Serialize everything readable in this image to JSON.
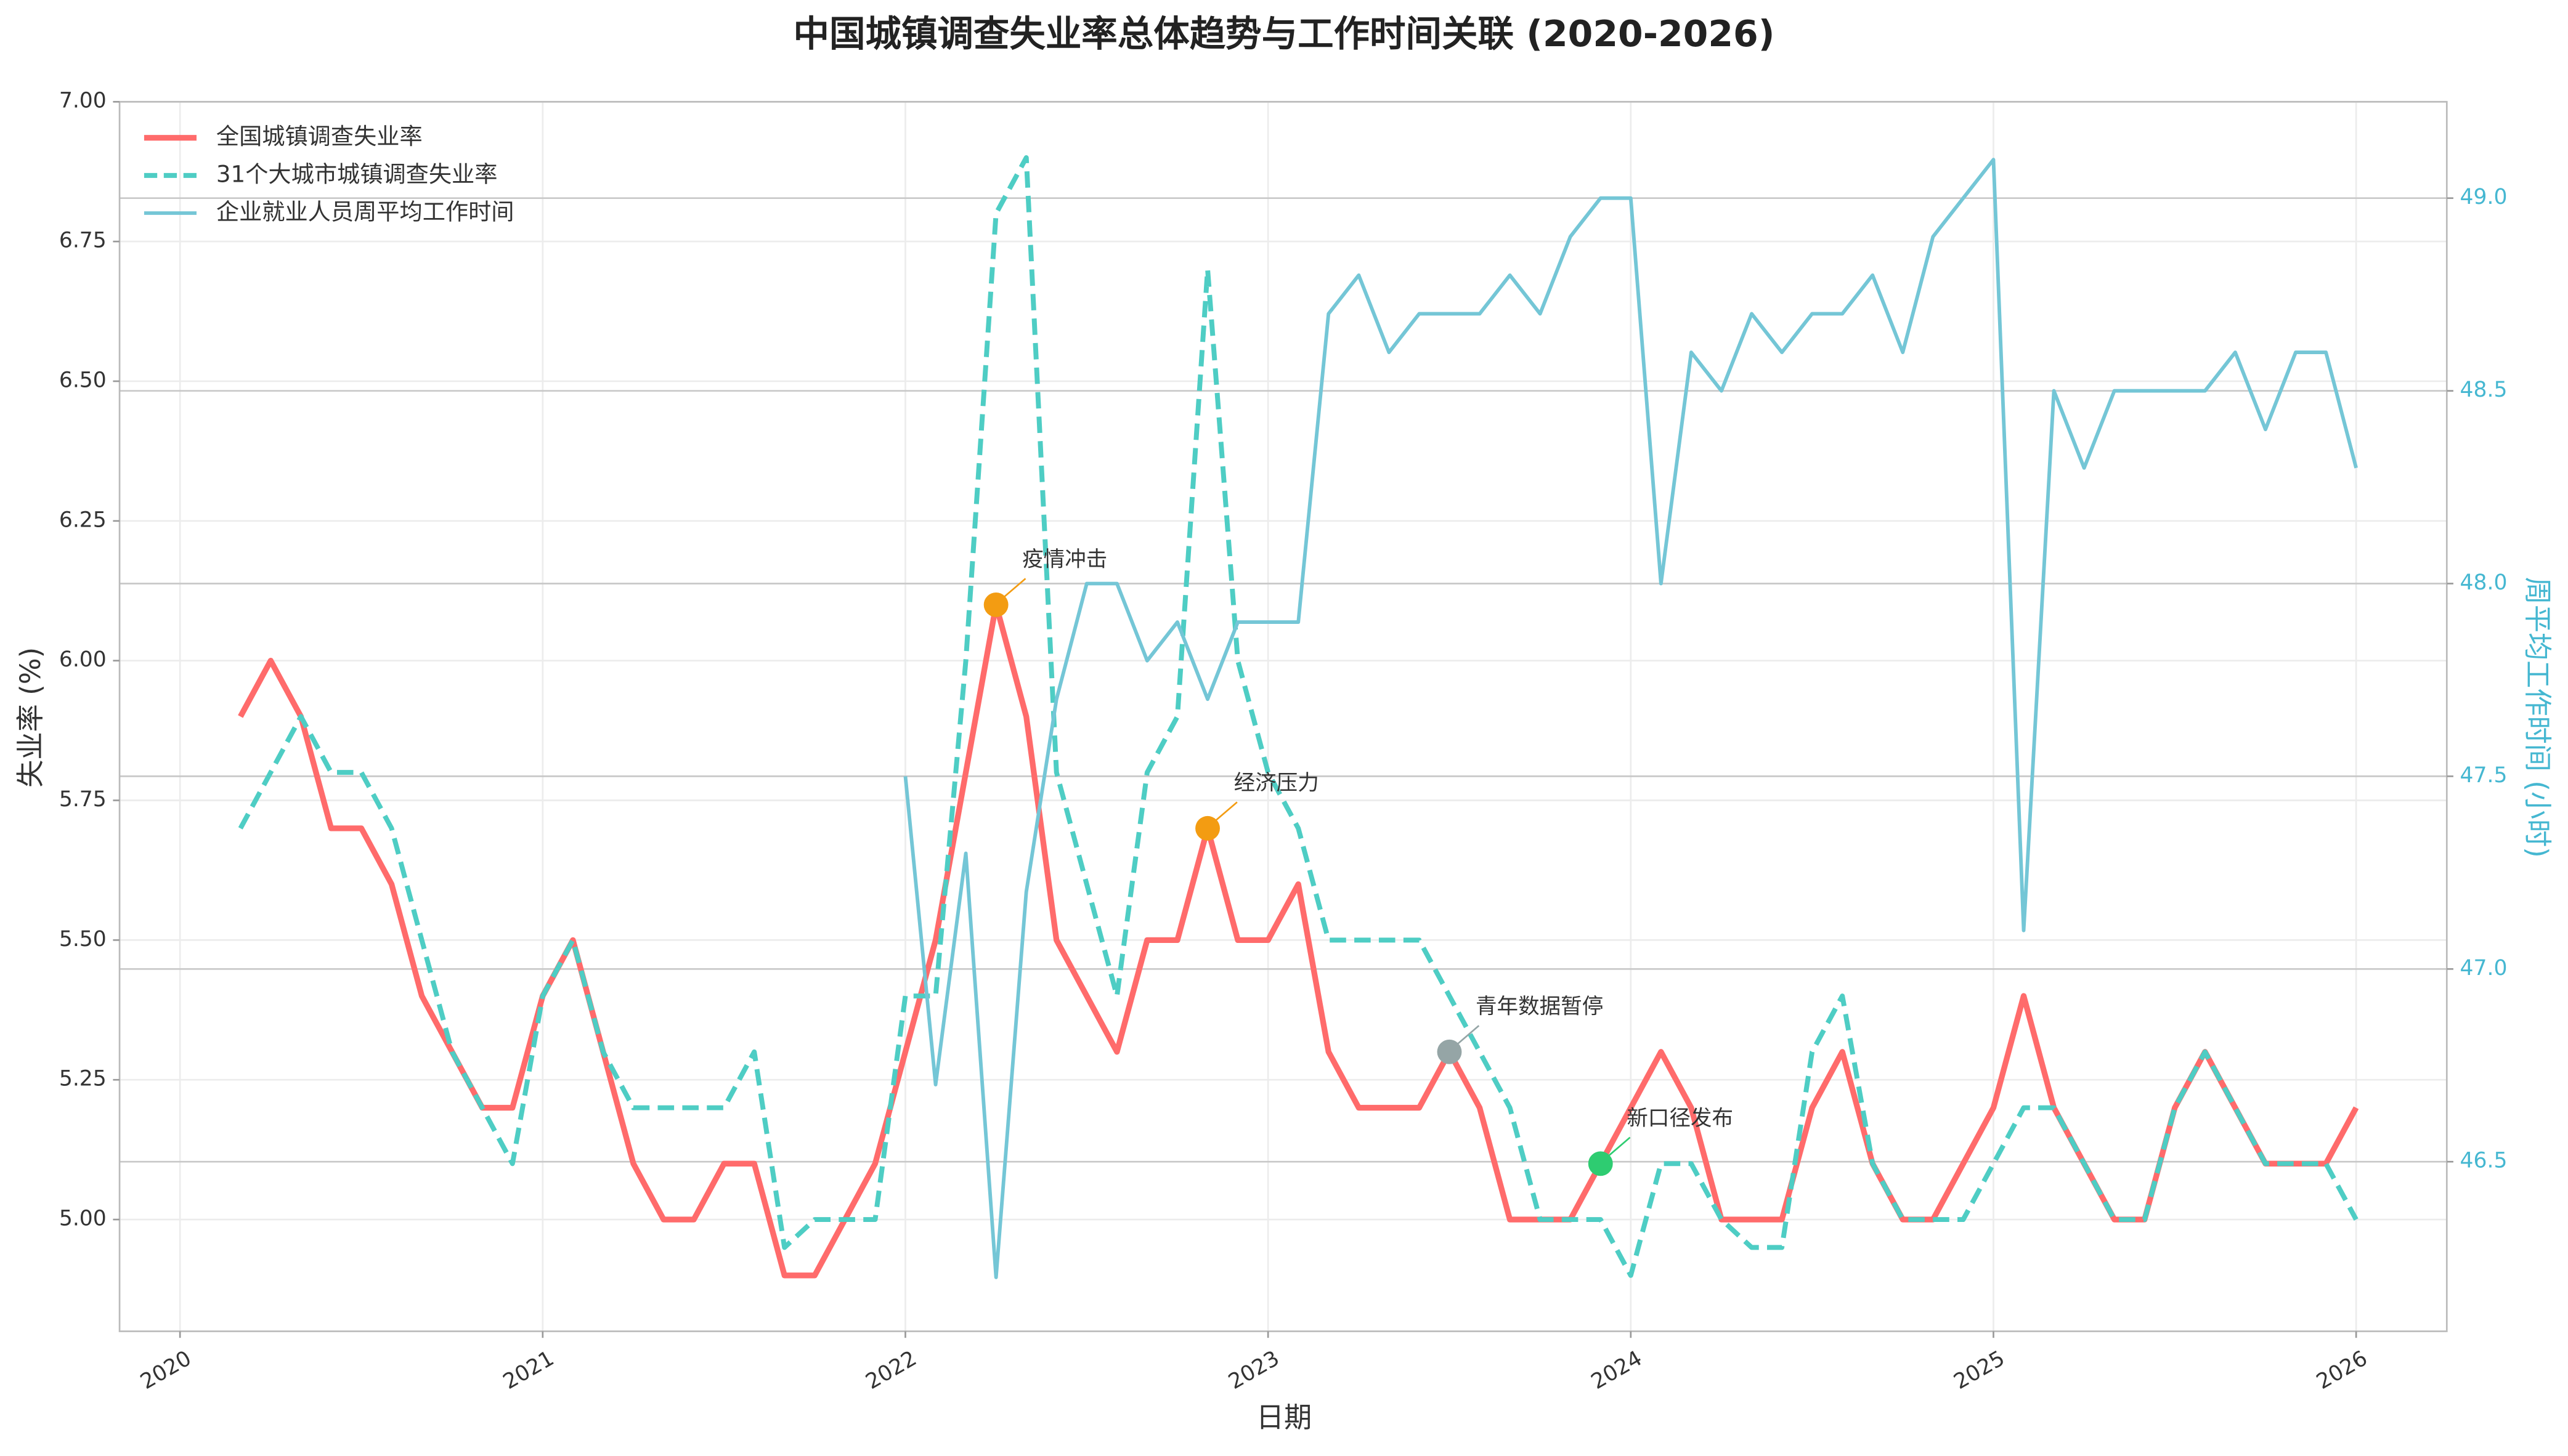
{
  "chart_data": {
    "type": "line",
    "title": "中国城镇调查失业率总体趋势与工作时间关联 (2020-2026)",
    "xlabel": "日期",
    "ylabel": "失业率 (%)",
    "y2label": "周平均工作时间 (小时)",
    "y2label_color": "#45b7d1",
    "x": [
      "2020-03",
      "2020-04",
      "2020-05",
      "2020-06",
      "2020-07",
      "2020-08",
      "2020-09",
      "2020-10",
      "2020-11",
      "2020-12",
      "2021-01",
      "2021-02",
      "2021-03",
      "2021-04",
      "2021-05",
      "2021-06",
      "2021-07",
      "2021-08",
      "2021-09",
      "2021-10",
      "2021-11",
      "2021-12",
      "2022-01",
      "2022-02",
      "2022-03",
      "2022-04",
      "2022-05",
      "2022-06",
      "2022-07",
      "2022-08",
      "2022-09",
      "2022-10",
      "2022-11",
      "2022-12",
      "2023-01",
      "2023-02",
      "2023-03",
      "2023-04",
      "2023-05",
      "2023-06",
      "2023-07",
      "2023-08",
      "2023-09",
      "2023-10",
      "2023-11",
      "2023-12",
      "2024-01",
      "2024-02",
      "2024-03",
      "2024-04",
      "2024-05",
      "2024-06",
      "2024-07",
      "2024-08",
      "2024-09",
      "2024-10",
      "2024-11",
      "2024-12",
      "2025-01",
      "2025-02",
      "2025-03",
      "2025-04",
      "2025-05",
      "2025-06",
      "2025-07",
      "2025-08",
      "2025-09",
      "2025-10",
      "2025-11",
      "2025-12",
      "2026-01"
    ],
    "series": [
      {
        "name": "全国城镇调查失业率",
        "color": "#ff6b6b",
        "linestyle": "solid",
        "linewidth": 3.5,
        "axis": "y",
        "values": [
          5.9,
          6.0,
          5.9,
          5.7,
          5.7,
          5.6,
          5.4,
          5.3,
          5.2,
          5.2,
          5.4,
          5.5,
          5.3,
          5.1,
          5.0,
          5.0,
          5.1,
          5.1,
          4.9,
          4.9,
          5.0,
          5.1,
          5.3,
          5.5,
          5.8,
          6.1,
          5.9,
          5.5,
          5.4,
          5.3,
          5.5,
          5.5,
          5.7,
          5.5,
          5.5,
          5.6,
          5.3,
          5.2,
          5.2,
          5.2,
          5.3,
          5.2,
          5.0,
          5.0,
          5.0,
          5.1,
          5.2,
          5.3,
          5.2,
          5.0,
          5.0,
          5.0,
          5.2,
          5.3,
          5.1,
          5.0,
          5.0,
          5.1,
          5.2,
          5.4,
          5.2,
          5.1,
          5.0,
          5.0,
          5.2,
          5.3,
          5.2,
          5.1,
          5.1,
          5.1,
          5.2
        ]
      },
      {
        "name": "31个大城市城镇调查失业率",
        "color": "#4ecdc4",
        "linestyle": "dashed",
        "linewidth": 3,
        "axis": "y",
        "values": [
          5.7,
          5.8,
          5.9,
          5.8,
          5.8,
          5.7,
          5.5,
          5.3,
          5.2,
          5.1,
          5.4,
          5.5,
          5.3,
          5.2,
          5.2,
          5.2,
          5.2,
          5.3,
          4.95,
          5.0,
          5.0,
          5.0,
          5.4,
          5.4,
          6.0,
          6.8,
          6.9,
          5.8,
          5.6,
          5.4,
          5.8,
          5.9,
          6.7,
          6.0,
          5.8,
          5.7,
          5.5,
          5.5,
          5.5,
          5.5,
          5.4,
          5.3,
          5.2,
          5.0,
          5.0,
          5.0,
          4.9,
          5.1,
          5.1,
          5.0,
          4.95,
          4.95,
          5.3,
          5.4,
          5.1,
          5.0,
          5.0,
          5.0,
          5.1,
          5.2,
          5.2,
          5.1,
          5.0,
          5.0,
          5.2,
          5.3,
          5.2,
          5.1,
          5.1,
          5.1,
          5.0
        ]
      },
      {
        "name": "企业就业人员周平均工作时间",
        "color": "#74c6d6",
        "linestyle": "solid",
        "linewidth": 2.2,
        "axis": "y2",
        "values": [
          null,
          null,
          null,
          null,
          null,
          null,
          null,
          null,
          null,
          null,
          null,
          null,
          null,
          null,
          null,
          null,
          null,
          null,
          null,
          null,
          null,
          null,
          47.5,
          46.7,
          47.3,
          46.2,
          47.2,
          47.7,
          48.0,
          48.0,
          47.8,
          47.9,
          47.7,
          47.9,
          47.9,
          47.9,
          48.7,
          48.8,
          48.6,
          48.7,
          48.7,
          48.7,
          48.8,
          48.7,
          48.9,
          49.0,
          49.0,
          48.0,
          48.6,
          48.5,
          48.7,
          48.6,
          48.7,
          48.7,
          48.8,
          48.6,
          48.9,
          49.0,
          49.1,
          47.1,
          48.5,
          48.3,
          48.5,
          48.5,
          48.5,
          48.5,
          48.6,
          48.4,
          48.6,
          48.6,
          48.3
        ]
      }
    ],
    "annotations": [
      {
        "text": "疫情冲击",
        "x": "2022-04",
        "y": 6.1,
        "color": "#f39c12"
      },
      {
        "text": "经济压力",
        "x": "2022-11",
        "y": 5.7,
        "color": "#f39c12"
      },
      {
        "text": "青年数据暂停",
        "x": "2023-07",
        "y": 5.3,
        "color": "#95a5a6"
      },
      {
        "text": "新口径发布",
        "x": "2023-12",
        "y": 5.1,
        "color": "#2ecc71"
      }
    ],
    "xlim": [
      "2019-11",
      "2026-04"
    ],
    "xticks": [
      {
        "value": "2020-01",
        "label": "2020"
      },
      {
        "value": "2021-01",
        "label": "2021"
      },
      {
        "value": "2022-01",
        "label": "2022"
      },
      {
        "value": "2023-01",
        "label": "2023"
      },
      {
        "value": "2024-01",
        "label": "2024"
      },
      {
        "value": "2025-01",
        "label": "2025"
      },
      {
        "value": "2026-01",
        "label": "2026"
      }
    ],
    "ylim": [
      4.8,
      7.0
    ],
    "yticks": [
      {
        "value": 5.0,
        "label": "5.00"
      },
      {
        "value": 5.25,
        "label": "5.25"
      },
      {
        "value": 5.5,
        "label": "5.50"
      },
      {
        "value": 5.75,
        "label": "5.75"
      },
      {
        "value": 6.0,
        "label": "6.00"
      },
      {
        "value": 6.25,
        "label": "6.25"
      },
      {
        "value": 6.5,
        "label": "6.50"
      },
      {
        "value": 6.75,
        "label": "6.75"
      },
      {
        "value": 7.0,
        "label": "7.00"
      }
    ],
    "y2lim": [
      46.06,
      49.25
    ],
    "y2ticks": [
      {
        "value": 46.5,
        "label": "46.5"
      },
      {
        "value": 47.0,
        "label": "47.0"
      },
      {
        "value": 47.5,
        "label": "47.5"
      },
      {
        "value": 48.0,
        "label": "48.0"
      },
      {
        "value": 48.5,
        "label": "48.5"
      },
      {
        "value": 49.0,
        "label": "49.0"
      }
    ],
    "grid": true,
    "legend": "upper left"
  }
}
